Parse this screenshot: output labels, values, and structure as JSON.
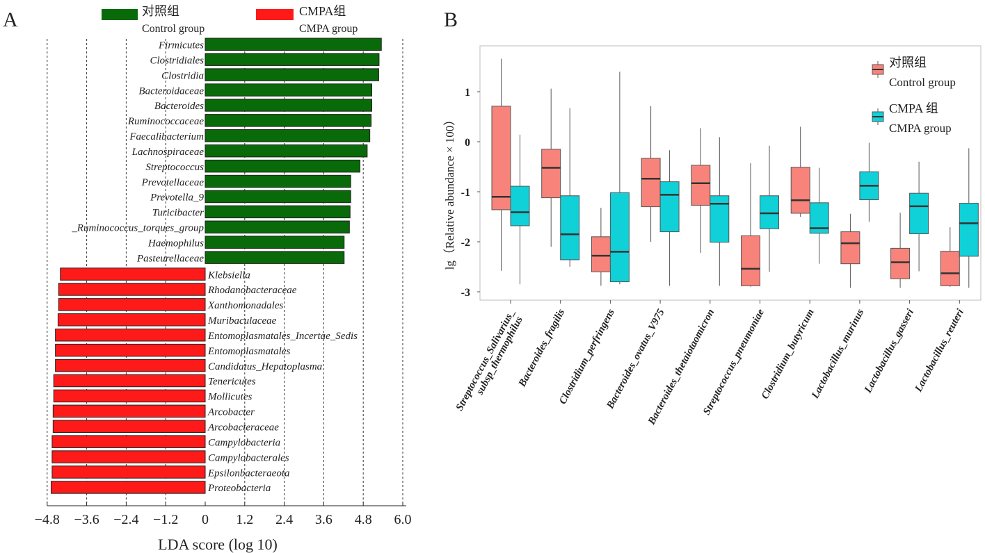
{
  "panel_a": {
    "panel_label": "A",
    "legend": [
      {
        "name_cn": "对照组",
        "name_en": "Control group",
        "color": "#086a08"
      },
      {
        "name_cn": "CMPA组",
        "name_en": "CMPA group",
        "color": "#ff1a1a"
      }
    ],
    "xlabel": "LDA score (log 10)",
    "x_ticks": [
      "−4.8",
      "−3.6",
      "−2.4",
      "−1.2",
      "0",
      "1.2",
      "2.4",
      "3.6",
      "4.8",
      "6.0"
    ]
  },
  "panel_b": {
    "panel_label": "B",
    "ylabel": "lg（Relative abundance × 100）",
    "y_ticks": [
      "1",
      "0",
      "-1",
      "-2",
      "-3"
    ],
    "legend": [
      {
        "name_cn": "对照组",
        "name_en": "Control group",
        "color": "#f8837a"
      },
      {
        "name_cn": "CMPA 组",
        "name_en": "CMPA group",
        "color": "#10d0d8"
      }
    ]
  },
  "chart_data": [
    {
      "type": "bar",
      "orientation": "horizontal",
      "xlabel": "LDA score (log 10)",
      "xlim": [
        -4.8,
        6.0
      ],
      "grid": true,
      "legend_position": "top",
      "series": [
        {
          "name": "对照组 Control group",
          "color": "#086a08",
          "categories": [
            "Firmicutes",
            "Clostridiales",
            "Clostridia",
            "Bacteroidaceae",
            "Bacteroides",
            "Ruminococcaceae",
            "Faecalibacterium",
            "Lachnospiraceae",
            "Streptococcus",
            "Prevotellaceae",
            "Prevotella_9",
            "Turicibacter",
            "_Ruminococcus_torques_group",
            "Haemophilus",
            "Pasteurellaceae"
          ],
          "values": [
            5.35,
            5.28,
            5.27,
            5.06,
            5.06,
            5.04,
            5.0,
            4.92,
            4.7,
            4.42,
            4.42,
            4.4,
            4.38,
            4.22,
            4.22
          ]
        },
        {
          "name": "CMPA组 CMPA group",
          "color": "#ff1a1a",
          "categories": [
            "Klebsiella",
            "Rhodanobacteraceae",
            "Xanthomonadales",
            "Muribaculaceae",
            "Entomoplasmatales_Incertae_Sedis",
            "Entomoplasmatales",
            "Candidatus_Hepatoplasma",
            "Tenericutes",
            "Mollicutes",
            "Arcobacter",
            "Arcobacteraceae",
            "Campylobacteria",
            "Campylobacterales",
            "Epsilonbacteraeota",
            "Proteobacteria"
          ],
          "values": [
            -4.4,
            -4.45,
            -4.45,
            -4.47,
            -4.55,
            -4.55,
            -4.55,
            -4.6,
            -4.6,
            -4.62,
            -4.62,
            -4.65,
            -4.65,
            -4.65,
            -4.68
          ]
        }
      ]
    },
    {
      "type": "box",
      "ylabel": "lg（Relative abundance × 100）",
      "ylim": [
        -3.15,
        1.9
      ],
      "legend_position": "top-right",
      "categories": [
        "Streptococcus_Salivarius_ subsp_thermophilus",
        "Bacteroides_fragilis",
        "Clostridium_perfringens",
        "Bacteroides_ovatus_V975",
        "Bacteroides_thetaiotaomicron",
        "Streptococcus_pneumoniae",
        "Clostridium_butyricum",
        "Lactobacillus_murinus",
        "Lactobacillus_gasseri",
        "Lactobacillus_reuteri"
      ],
      "series": [
        {
          "name": "对照组 Control group",
          "color": "#f8837a",
          "boxes": [
            {
              "whisker_low": -2.58,
              "q1": -1.36,
              "median": -1.1,
              "q3": 0.71,
              "whisker_high": 1.66
            },
            {
              "whisker_low": -2.1,
              "q1": -1.12,
              "median": -0.52,
              "q3": -0.15,
              "whisker_high": 1.06
            },
            {
              "whisker_low": -2.88,
              "q1": -2.6,
              "median": -2.28,
              "q3": -1.9,
              "whisker_high": -1.32
            },
            {
              "whisker_low": -2.0,
              "q1": -1.3,
              "median": -0.74,
              "q3": -0.33,
              "whisker_high": 0.71
            },
            {
              "whisker_low": -2.22,
              "q1": -1.27,
              "median": -0.83,
              "q3": -0.47,
              "whisker_high": 0.27
            },
            {
              "whisker_low": -2.9,
              "q1": -2.88,
              "median": -2.54,
              "q3": -1.88,
              "whisker_high": -0.43
            },
            {
              "whisker_low": -1.5,
              "q1": -1.43,
              "median": -1.17,
              "q3": -0.51,
              "whisker_high": 0.3
            },
            {
              "whisker_low": -2.92,
              "q1": -2.44,
              "median": -2.03,
              "q3": -1.8,
              "whisker_high": -1.44
            },
            {
              "whisker_low": -2.92,
              "q1": -2.74,
              "median": -2.41,
              "q3": -2.13,
              "whisker_high": -1.42
            },
            {
              "whisker_low": -2.9,
              "q1": -2.88,
              "median": -2.63,
              "q3": -2.19,
              "whisker_high": -1.71
            }
          ]
        },
        {
          "name": "CMPA 组 CMPA group",
          "color": "#10d0d8",
          "boxes": [
            {
              "whisker_low": -2.85,
              "q1": -1.68,
              "median": -1.41,
              "q3": -0.89,
              "whisker_high": 0.14
            },
            {
              "whisker_low": -2.5,
              "q1": -2.36,
              "median": -1.85,
              "q3": -1.08,
              "whisker_high": 0.67
            },
            {
              "whisker_low": -2.85,
              "q1": -2.8,
              "median": -2.2,
              "q3": -1.02,
              "whisker_high": 1.4
            },
            {
              "whisker_low": -2.88,
              "q1": -1.8,
              "median": -1.06,
              "q3": -0.8,
              "whisker_high": -0.17
            },
            {
              "whisker_low": -2.88,
              "q1": -2.01,
              "median": -1.24,
              "q3": -1.08,
              "whisker_high": 0.09
            },
            {
              "whisker_low": -2.6,
              "q1": -1.74,
              "median": -1.43,
              "q3": -1.08,
              "whisker_high": -0.08
            },
            {
              "whisker_low": -2.44,
              "q1": -1.83,
              "median": -1.73,
              "q3": -1.22,
              "whisker_high": -0.52
            },
            {
              "whisker_low": -1.6,
              "q1": -1.16,
              "median": -0.88,
              "q3": -0.6,
              "whisker_high": -0.02
            },
            {
              "whisker_low": -2.59,
              "q1": -1.84,
              "median": -1.29,
              "q3": -1.03,
              "whisker_high": -0.4
            },
            {
              "whisker_low": -2.92,
              "q1": -2.29,
              "median": -1.63,
              "q3": -1.23,
              "whisker_high": -0.13
            }
          ]
        }
      ]
    }
  ]
}
